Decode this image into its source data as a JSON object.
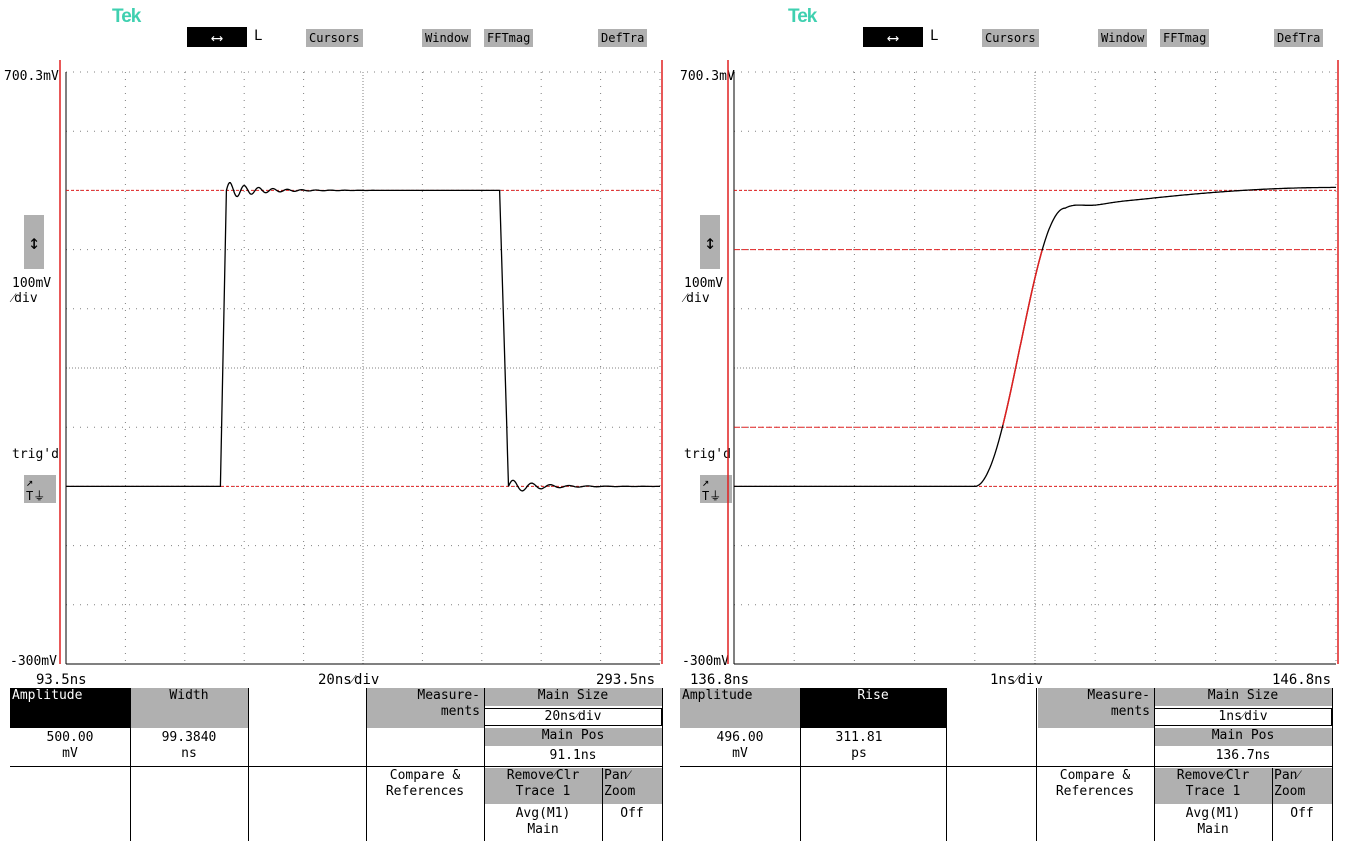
{
  "scopes": [
    {
      "brand": "Tek",
      "arrow_glyph": "⟷",
      "arrow_label": "L",
      "toolbar": [
        "Cursors",
        "Window",
        "FFTmag",
        "DefTra"
      ],
      "vtop": "700.3mV",
      "vscale1": "100mV",
      "vscale2": "⁄div",
      "trig": "trig'd",
      "trig_btn": "T",
      "vbottom": "-300mV",
      "x_left": "93.5ns",
      "x_center": "20ns⁄div",
      "x_right": "293.5ns",
      "meas1_label": "Amplitude",
      "meas2_label": "Width",
      "meas1_value": "500.00",
      "meas1_unit": "mV",
      "meas2_value": "99.3840",
      "meas2_unit": "ns",
      "measurements1": "Measure-",
      "measurements2": "ments",
      "main_size_label": "Main Size",
      "main_size_value": "20ns⁄div",
      "main_pos_label": "Main Pos",
      "main_pos_value": "91.1ns",
      "compare1": "Compare &",
      "compare2": "References",
      "remove1": "Remove⁄Clr",
      "remove2": "Trace 1",
      "remove3": "Avg(M1)",
      "remove4": "Main",
      "pan1": "Pan⁄",
      "pan2": "Zoom",
      "pan3": "Off",
      "waveform": "pulse",
      "colors": {
        "trace": "#000000",
        "cursor": "#e02020",
        "grid": "#808080"
      }
    },
    {
      "brand": "Tek",
      "arrow_glyph": "⟷",
      "arrow_label": "L",
      "toolbar": [
        "Cursors",
        "Window",
        "FFTmag",
        "DefTra"
      ],
      "vtop": "700.3mV",
      "vscale1": "100mV",
      "vscale2": "⁄div",
      "trig": "trig'd",
      "trig_btn": "T",
      "vbottom": "-300mV",
      "x_left": "136.8ns",
      "x_center": "1ns⁄div",
      "x_right": "146.8ns",
      "meas1_label": "Amplitude",
      "meas2_label": "Rise",
      "meas1_value": "496.00",
      "meas1_unit": "mV",
      "meas2_value": "311.81",
      "meas2_unit": "ps",
      "measurements1": "Measure-",
      "measurements2": "ments",
      "main_size_label": "Main Size",
      "main_size_value": "1ns⁄div",
      "main_pos_label": "Main Pos",
      "main_pos_value": "136.7ns",
      "compare1": "Compare &",
      "compare2": "References",
      "remove1": "Remove⁄Clr",
      "remove2": "Trace 1",
      "remove3": "Avg(M1)",
      "remove4": "Main",
      "pan1": "Pan⁄",
      "pan2": "Zoom",
      "pan3": "Off",
      "waveform": "rise",
      "colors": {
        "trace": "#000000",
        "cursor": "#e02020",
        "grid": "#808080"
      }
    }
  ]
}
